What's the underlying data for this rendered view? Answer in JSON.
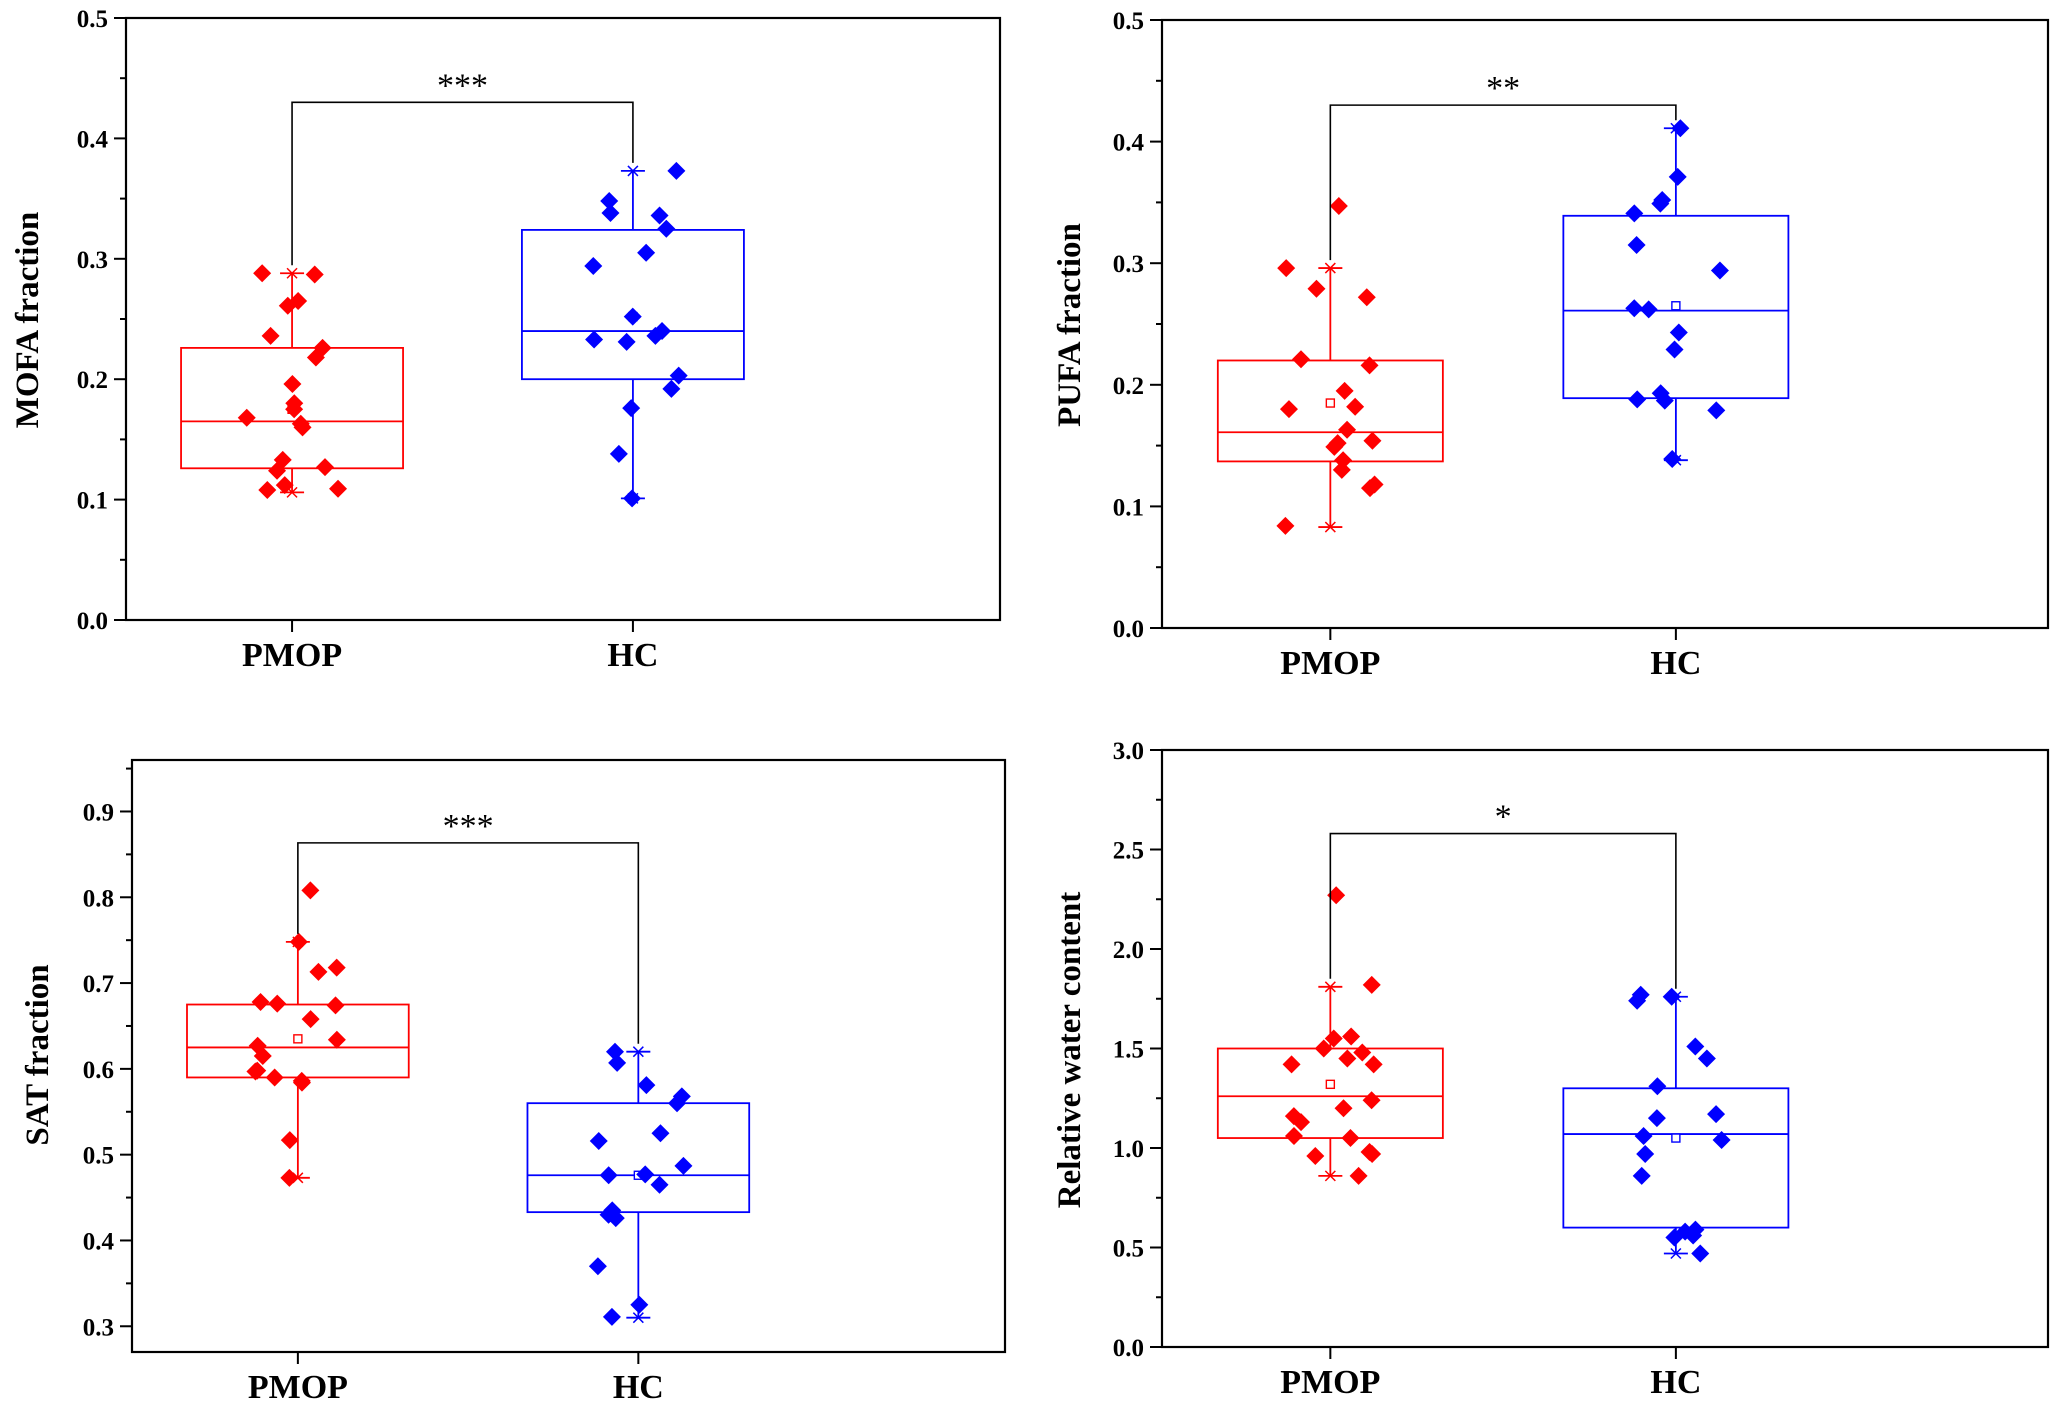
{
  "chart_data": [
    {
      "type": "box",
      "ylabel": "MOFA fraction",
      "ylim": [
        0.0,
        0.5
      ],
      "yticks": [
        "0.0",
        "0.1",
        "0.2",
        "0.3",
        "0.4",
        "0.5"
      ],
      "categories": [
        "PMOP",
        "HC"
      ],
      "significance": "***",
      "groups": [
        {
          "name": "PMOP",
          "color": "#ff0000",
          "q1": 0.126,
          "median": 0.165,
          "q3": 0.226,
          "mean": 0.175,
          "whisker_low": 0.106,
          "whisker_high": 0.288,
          "points": [
            0.288,
            0.287,
            0.265,
            0.261,
            0.236,
            0.226,
            0.218,
            0.196,
            0.18,
            0.175,
            0.168,
            0.163,
            0.16,
            0.133,
            0.127,
            0.124,
            0.112,
            0.108,
            0.109
          ]
        },
        {
          "name": "HC",
          "color": "#0000ff",
          "q1": 0.2,
          "median": 0.24,
          "q3": 0.324,
          "mean": 0.252,
          "whisker_low": 0.101,
          "whisker_high": 0.373,
          "points": [
            0.373,
            0.348,
            0.338,
            0.336,
            0.325,
            0.305,
            0.294,
            0.252,
            0.24,
            0.236,
            0.233,
            0.231,
            0.203,
            0.192,
            0.176,
            0.138,
            0.101
          ]
        }
      ]
    },
    {
      "type": "box",
      "ylabel": "PUFA fraction",
      "ylim": [
        0.0,
        0.5
      ],
      "yticks": [
        "0.0",
        "0.1",
        "0.2",
        "0.3",
        "0.4",
        "0.5"
      ],
      "categories": [
        "PMOP",
        "HC"
      ],
      "significance": "**",
      "groups": [
        {
          "name": "PMOP",
          "color": "#ff0000",
          "q1": 0.137,
          "median": 0.161,
          "q3": 0.22,
          "mean": 0.185,
          "whisker_low": 0.083,
          "whisker_high": 0.296,
          "points": [
            0.347,
            0.296,
            0.279,
            0.272,
            0.221,
            0.216,
            0.195,
            0.182,
            0.18,
            0.163,
            0.154,
            0.152,
            0.149,
            0.138,
            0.13,
            0.118,
            0.115,
            0.084
          ]
        },
        {
          "name": "HC",
          "color": "#0000ff",
          "q1": 0.189,
          "median": 0.261,
          "q3": 0.339,
          "mean": 0.265,
          "whisker_low": 0.138,
          "whisker_high": 0.411,
          "points": [
            0.411,
            0.371,
            0.352,
            0.349,
            0.341,
            0.315,
            0.294,
            0.263,
            0.262,
            0.243,
            0.229,
            0.193,
            0.188,
            0.187,
            0.179,
            0.139
          ]
        }
      ]
    },
    {
      "type": "box",
      "ylabel": "SAT fraction",
      "ylim": [
        0.27,
        0.96
      ],
      "yticks": [
        "0.3",
        "0.4",
        "0.5",
        "0.6",
        "0.7",
        "0.8",
        "0.9"
      ],
      "categories": [
        "PMOP",
        "HC"
      ],
      "significance": "***",
      "groups": [
        {
          "name": "PMOP",
          "color": "#ff0000",
          "q1": 0.59,
          "median": 0.625,
          "q3": 0.675,
          "mean": 0.635,
          "whisker_low": 0.473,
          "whisker_high": 0.748,
          "points": [
            0.808,
            0.748,
            0.718,
            0.713,
            0.678,
            0.676,
            0.674,
            0.658,
            0.634,
            0.627,
            0.615,
            0.598,
            0.597,
            0.59,
            0.586,
            0.584,
            0.517,
            0.473
          ]
        },
        {
          "name": "HC",
          "color": "#0000ff",
          "q1": 0.433,
          "median": 0.476,
          "q3": 0.56,
          "mean": 0.476,
          "whisker_low": 0.31,
          "whisker_high": 0.62,
          "points": [
            0.62,
            0.607,
            0.581,
            0.568,
            0.56,
            0.525,
            0.516,
            0.487,
            0.477,
            0.476,
            0.465,
            0.435,
            0.43,
            0.426,
            0.37,
            0.325,
            0.311
          ]
        }
      ]
    },
    {
      "type": "box",
      "ylabel": "Relative water content",
      "ylim": [
        0.0,
        3.0
      ],
      "yticks": [
        "0.0",
        "0.5",
        "1.0",
        "1.5",
        "2.0",
        "2.5",
        "3.0"
      ],
      "categories": [
        "PMOP",
        "HC"
      ],
      "significance": "*",
      "groups": [
        {
          "name": "PMOP",
          "color": "#ff0000",
          "q1": 1.05,
          "median": 1.26,
          "q3": 1.5,
          "mean": 1.32,
          "whisker_low": 0.86,
          "whisker_high": 1.81,
          "points": [
            2.27,
            1.82,
            1.56,
            1.55,
            1.5,
            1.48,
            1.45,
            1.42,
            1.42,
            1.24,
            1.2,
            1.16,
            1.13,
            1.06,
            1.05,
            0.98,
            0.97,
            0.96,
            0.86
          ]
        },
        {
          "name": "HC",
          "color": "#0000ff",
          "q1": 0.6,
          "median": 1.07,
          "q3": 1.3,
          "mean": 1.05,
          "whisker_low": 0.47,
          "whisker_high": 1.76,
          "points": [
            1.77,
            1.76,
            1.74,
            1.51,
            1.45,
            1.31,
            1.17,
            1.15,
            1.06,
            1.04,
            0.97,
            0.86,
            0.59,
            0.58,
            0.56,
            0.55,
            0.47
          ]
        }
      ]
    }
  ]
}
